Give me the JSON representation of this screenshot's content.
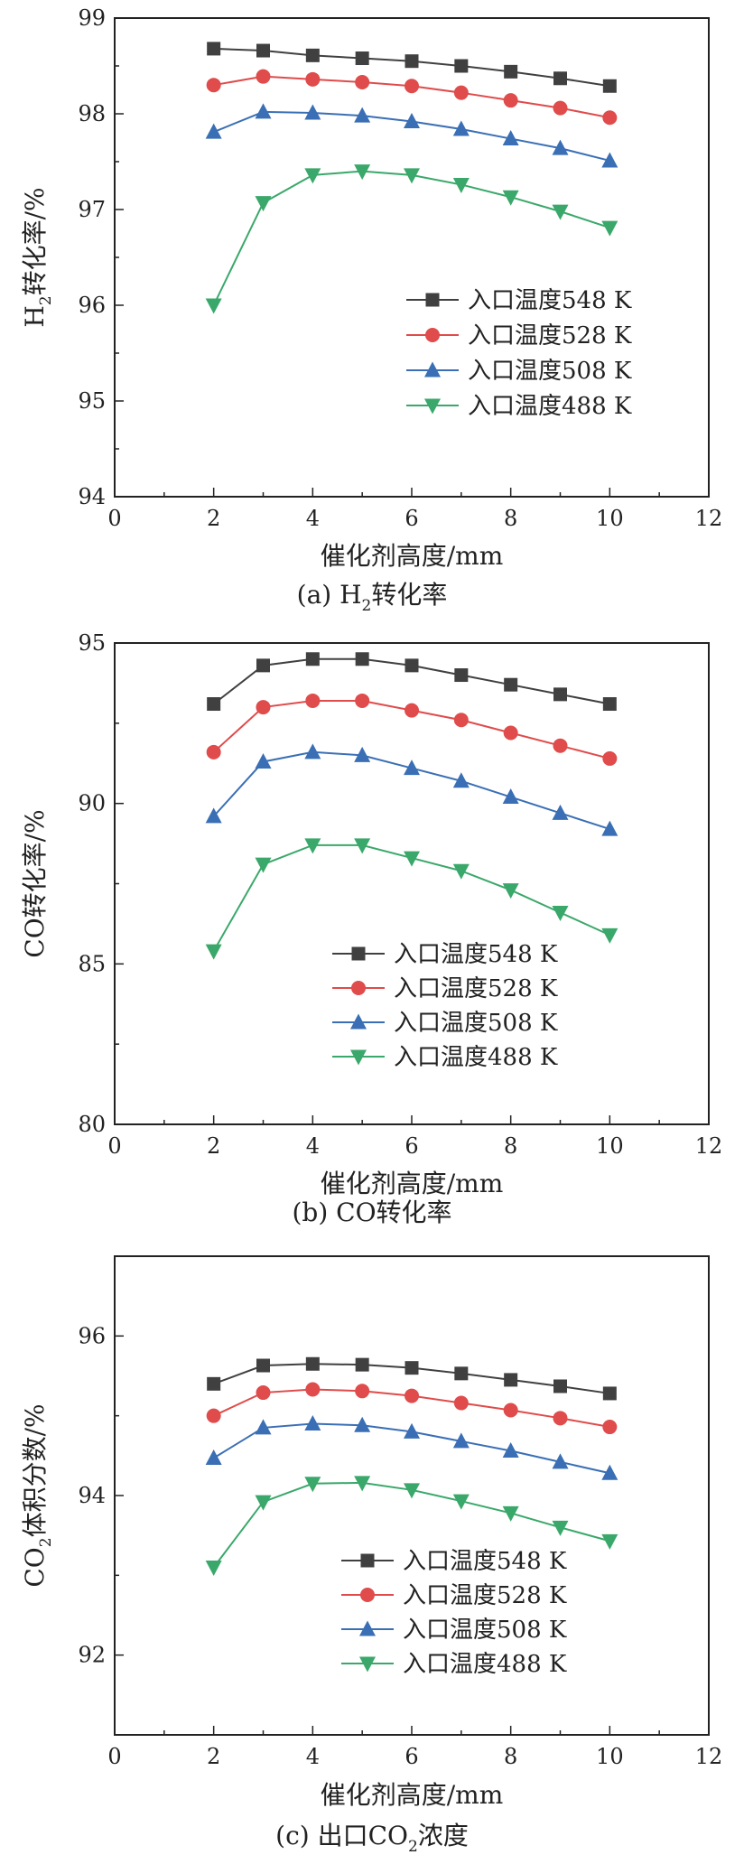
{
  "colors": {
    "series": [
      "#404040",
      "#e04b4b",
      "#3a6fb5",
      "#3aa86a"
    ],
    "axis": "#222222"
  },
  "chart_data": [
    {
      "type": "line",
      "caption": {
        "prefix": "(a) H",
        "sub": "2",
        "suffix": "转化率"
      },
      "xlabel": "催化剂高度/mm",
      "ylabel": {
        "prefix": "H",
        "sub": "2",
        "suffix": "转化率/%"
      },
      "xlim": [
        0,
        12
      ],
      "ylim": [
        94,
        99
      ],
      "xticks": [
        0,
        2,
        4,
        6,
        8,
        10,
        12
      ],
      "yticks": [
        94,
        95,
        96,
        97,
        98,
        99
      ],
      "grid": false,
      "legend_position": "lower-right",
      "x": [
        2,
        3,
        4,
        5,
        6,
        7,
        8,
        9,
        10
      ],
      "series": [
        {
          "name": "入口温度548 K",
          "marker": "square",
          "values": [
            98.68,
            98.66,
            98.61,
            98.58,
            98.55,
            98.5,
            98.44,
            98.37,
            98.29
          ]
        },
        {
          "name": "入口温度528 K",
          "marker": "circle",
          "values": [
            98.3,
            98.39,
            98.36,
            98.33,
            98.29,
            98.22,
            98.14,
            98.06,
            97.96
          ]
        },
        {
          "name": "入口温度508 K",
          "marker": "triangle-up",
          "values": [
            97.81,
            98.02,
            98.01,
            97.98,
            97.92,
            97.84,
            97.74,
            97.64,
            97.51
          ]
        },
        {
          "name": "入口温度488 K",
          "marker": "triangle-down",
          "values": [
            96.0,
            97.07,
            97.36,
            97.4,
            97.36,
            97.26,
            97.13,
            96.98,
            96.81
          ]
        }
      ]
    },
    {
      "type": "line",
      "caption": {
        "prefix": "(b) CO转化率",
        "sub": "",
        "suffix": ""
      },
      "xlabel": "催化剂高度/mm",
      "ylabel": {
        "prefix": "CO转化率/%",
        "sub": "",
        "suffix": ""
      },
      "xlim": [
        0,
        12
      ],
      "ylim": [
        80,
        95
      ],
      "xticks": [
        0,
        2,
        4,
        6,
        8,
        10,
        12
      ],
      "yticks": [
        80,
        85,
        90,
        95
      ],
      "grid": false,
      "legend_position": "lower-right",
      "x": [
        2,
        3,
        4,
        5,
        6,
        7,
        8,
        9,
        10
      ],
      "series": [
        {
          "name": "入口温度548 K",
          "marker": "square",
          "values": [
            93.1,
            94.3,
            94.5,
            94.5,
            94.3,
            94.0,
            93.7,
            93.4,
            93.1
          ]
        },
        {
          "name": "入口温度528 K",
          "marker": "circle",
          "values": [
            91.6,
            93.0,
            93.2,
            93.2,
            92.9,
            92.6,
            92.2,
            91.8,
            91.4
          ]
        },
        {
          "name": "入口温度508 K",
          "marker": "triangle-up",
          "values": [
            89.6,
            91.3,
            91.6,
            91.5,
            91.1,
            90.7,
            90.2,
            89.7,
            89.2
          ]
        },
        {
          "name": "入口温度488 K",
          "marker": "triangle-down",
          "values": [
            85.4,
            88.1,
            88.7,
            88.7,
            88.3,
            87.9,
            87.3,
            86.6,
            85.9
          ]
        }
      ]
    },
    {
      "type": "line",
      "caption": {
        "prefix": "(c) 出口CO",
        "sub": "2",
        "suffix": "浓度"
      },
      "xlabel": "催化剂高度/mm",
      "ylabel": {
        "prefix": "CO",
        "sub": "2",
        "suffix": "体积分数/%"
      },
      "xlim": [
        0,
        12
      ],
      "ylim": [
        91,
        97
      ],
      "xticks": [
        0,
        2,
        4,
        6,
        8,
        10,
        12
      ],
      "yticks": [
        92,
        94,
        96
      ],
      "grid": false,
      "legend_position": "lower-right",
      "x": [
        2,
        3,
        4,
        5,
        6,
        7,
        8,
        9,
        10
      ],
      "series": [
        {
          "name": "入口温度548 K",
          "marker": "square",
          "values": [
            95.4,
            95.63,
            95.65,
            95.64,
            95.6,
            95.53,
            95.45,
            95.37,
            95.28
          ]
        },
        {
          "name": "入口温度528 K",
          "marker": "circle",
          "values": [
            95.0,
            95.29,
            95.33,
            95.31,
            95.25,
            95.16,
            95.07,
            94.97,
            94.86
          ]
        },
        {
          "name": "入口温度508 K",
          "marker": "triangle-up",
          "values": [
            94.47,
            94.85,
            94.9,
            94.88,
            94.8,
            94.68,
            94.56,
            94.42,
            94.28
          ]
        },
        {
          "name": "入口温度488 K",
          "marker": "triangle-down",
          "values": [
            93.1,
            93.92,
            94.15,
            94.16,
            94.07,
            93.93,
            93.78,
            93.6,
            93.43
          ]
        }
      ]
    }
  ]
}
